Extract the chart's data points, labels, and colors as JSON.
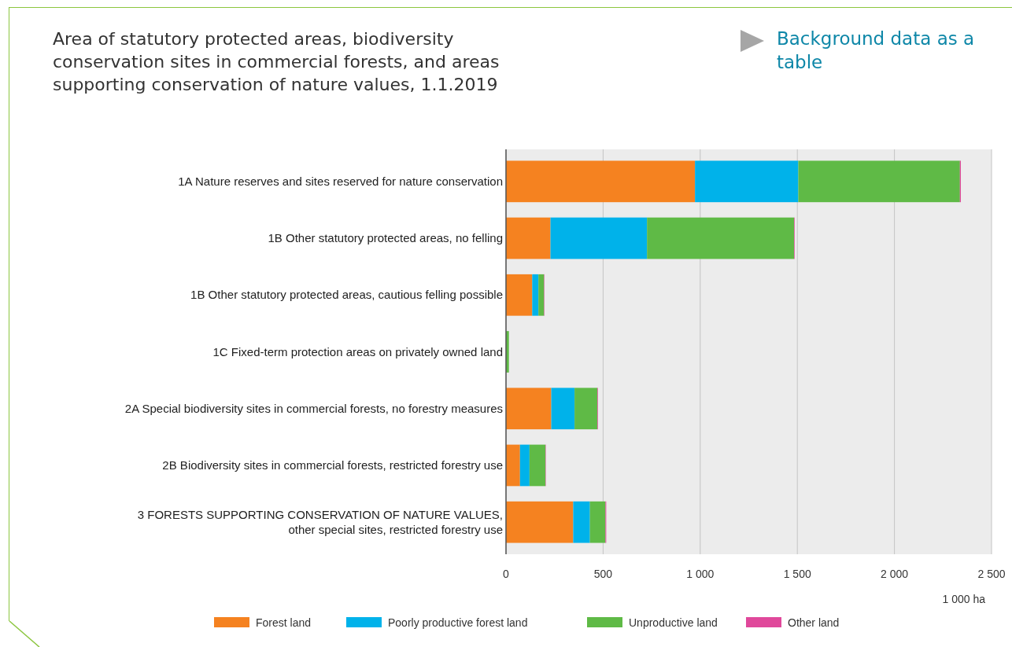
{
  "chart_data": {
    "type": "bar",
    "orientation": "horizontal",
    "stacked": true,
    "title": "Area of statutory protected areas, biodiversity conservation sites in commercial forests, and areas supporting conservation of nature values, 1.1.2019",
    "xlabel": "1 000 ha",
    "annotations": [
      "Background data as a table"
    ],
    "categories": [
      "1A Nature reserves and sites reserved for nature conservation",
      "1B Other statutory protected areas, no felling",
      "1B Other statutory protected areas, cautious felling possible",
      "1C Fixed-term protection areas on privately owned land",
      "2A Special biodiversity sites in commercial forests, no forestry measures",
      "2B Biodiversity sites in commercial forests, restricted forestry use",
      "3 FORESTS SUPPORTING CONSERVATION OF NATURE VALUES, other special sites, restricted forestry use"
    ],
    "series": [
      {
        "name": "Forest land",
        "color": "#f58220",
        "values": [
          973,
          229,
          135,
          null,
          233,
          72,
          346
        ]
      },
      {
        "name": "Poorly productive forest land",
        "color": "#00b2ea",
        "values": [
          532,
          497,
          32,
          null,
          120,
          49,
          86
        ]
      },
      {
        "name": "Unproductive land",
        "color": "#5fba46",
        "values": [
          832,
          757,
          29,
          15,
          117,
          82,
          80
        ]
      },
      {
        "name": "Other land",
        "color": "#e0489b",
        "values": [
          5,
          3,
          2,
          null,
          3,
          2,
          4
        ]
      }
    ],
    "xlim": [
      0,
      2500
    ],
    "xticks": [
      0,
      500,
      {
        "value": 1000,
        "label": "1 000"
      },
      {
        "value": 1500,
        "label": "1 500"
      },
      {
        "value": 2000,
        "label": "2 000"
      },
      {
        "value": 2500,
        "label": "2 500"
      }
    ],
    "grid": "x",
    "legend": "bottom"
  }
}
